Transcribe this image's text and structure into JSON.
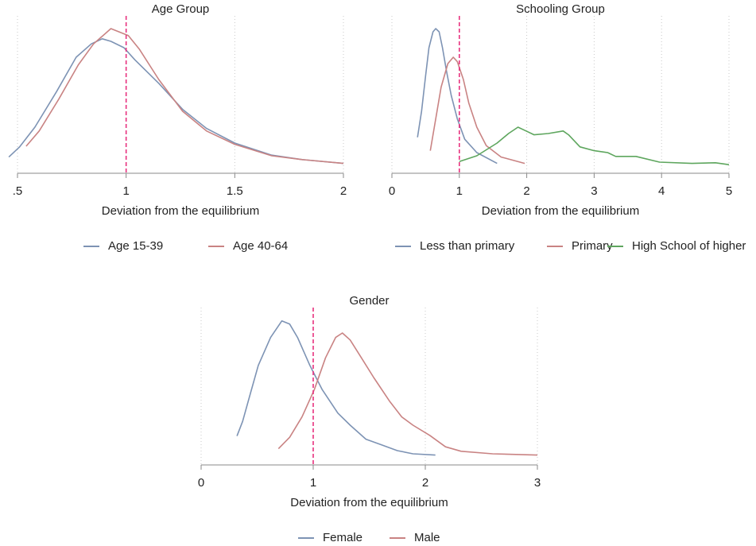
{
  "chart_data": [
    {
      "type": "line",
      "title": "Age Group",
      "xlabel": "Deviation from the equilibrium",
      "xlim": [
        0.5,
        2
      ],
      "xticks": [
        {
          "value": 0.5,
          "label": ".5"
        },
        1,
        1.5,
        2
      ],
      "ylim": [
        0,
        2.4
      ],
      "grid": true,
      "xline": 1,
      "xline_color": "#e8327f",
      "series": [
        {
          "name": "Age 15-39",
          "color": "#7d93b4",
          "x": [
            0.46,
            0.51,
            0.58,
            0.68,
            0.77,
            0.84,
            0.89,
            0.93,
            0.99,
            1.04,
            1.15,
            1.26,
            1.37,
            1.5,
            1.67,
            1.81,
            2.0
          ],
          "values": [
            0.18,
            0.34,
            0.65,
            1.21,
            1.75,
            1.96,
            2.04,
            2.0,
            1.9,
            1.71,
            1.34,
            0.93,
            0.63,
            0.4,
            0.21,
            0.14,
            0.08
          ]
        },
        {
          "name": "Age 40-64",
          "color": "#c98383",
          "x": [
            0.54,
            0.6,
            0.69,
            0.78,
            0.85,
            0.93,
            1.01,
            1.06,
            1.15,
            1.26,
            1.37,
            1.5,
            1.67,
            1.81,
            2.0
          ],
          "values": [
            0.35,
            0.59,
            1.09,
            1.63,
            1.96,
            2.2,
            2.09,
            1.88,
            1.4,
            0.9,
            0.59,
            0.38,
            0.2,
            0.14,
            0.08
          ]
        }
      ]
    },
    {
      "type": "line",
      "title": "Schooling Group",
      "xlabel": "Deviation from the equilibrium",
      "xlim": [
        0,
        5
      ],
      "xticks": [
        0,
        1,
        2,
        3,
        4,
        5
      ],
      "ylim": [
        0,
        2.4
      ],
      "grid": true,
      "xline": 1,
      "xline_color": "#e8327f",
      "series": [
        {
          "name": "Less than primary",
          "color": "#7d93b4",
          "x": [
            0.38,
            0.44,
            0.5,
            0.55,
            0.61,
            0.65,
            0.7,
            0.75,
            0.81,
            0.88,
            0.97,
            1.08,
            1.26,
            1.56
          ],
          "values": [
            0.49,
            0.9,
            1.46,
            1.9,
            2.15,
            2.2,
            2.15,
            1.9,
            1.53,
            1.15,
            0.78,
            0.46,
            0.25,
            0.08
          ]
        },
        {
          "name": "Primary",
          "color": "#c98383",
          "x": [
            0.57,
            0.65,
            0.73,
            0.83,
            0.91,
            0.97,
            1.06,
            1.14,
            1.26,
            1.4,
            1.62,
            1.97
          ],
          "values": [
            0.28,
            0.78,
            1.28,
            1.65,
            1.75,
            1.68,
            1.4,
            1.03,
            0.65,
            0.36,
            0.18,
            0.08
          ]
        },
        {
          "name": "High School of higher",
          "color": "#5ea65e",
          "x": [
            1.0,
            1.26,
            1.56,
            1.73,
            1.87,
            1.99,
            2.11,
            2.32,
            2.54,
            2.62,
            2.79,
            3.0,
            3.2,
            3.32,
            3.62,
            3.97,
            4.45,
            4.8,
            5.0
          ],
          "values": [
            0.11,
            0.2,
            0.4,
            0.55,
            0.65,
            0.59,
            0.53,
            0.55,
            0.59,
            0.53,
            0.34,
            0.28,
            0.25,
            0.19,
            0.19,
            0.1,
            0.08,
            0.09,
            0.06
          ]
        }
      ]
    },
    {
      "type": "line",
      "title": "Gender",
      "xlabel": "Deviation from the equilibrium",
      "xlim": [
        0,
        3
      ],
      "xticks": [
        0,
        1,
        2,
        3
      ],
      "ylim": [
        0,
        2.4
      ],
      "grid": true,
      "xline": 1,
      "xline_color": "#e8327f",
      "series": [
        {
          "name": "Female",
          "color": "#7d93b4",
          "x": [
            0.32,
            0.37,
            0.44,
            0.51,
            0.62,
            0.72,
            0.79,
            0.86,
            0.97,
            1.08,
            1.22,
            1.33,
            1.47,
            1.61,
            1.75,
            1.89,
            2.09
          ],
          "values": [
            0.38,
            0.61,
            1.05,
            1.49,
            1.93,
            2.19,
            2.14,
            1.93,
            1.49,
            1.11,
            0.74,
            0.55,
            0.33,
            0.24,
            0.15,
            0.1,
            0.08
          ]
        },
        {
          "name": "Male",
          "color": "#c98383",
          "x": [
            0.69,
            0.79,
            0.9,
            1.01,
            1.11,
            1.2,
            1.26,
            1.33,
            1.43,
            1.54,
            1.68,
            1.79,
            1.89,
            2.04,
            2.18,
            2.32,
            2.6,
            3.0
          ],
          "values": [
            0.18,
            0.36,
            0.68,
            1.11,
            1.61,
            1.93,
            2.0,
            1.89,
            1.61,
            1.3,
            0.93,
            0.68,
            0.55,
            0.39,
            0.21,
            0.14,
            0.1,
            0.08
          ]
        }
      ]
    }
  ]
}
